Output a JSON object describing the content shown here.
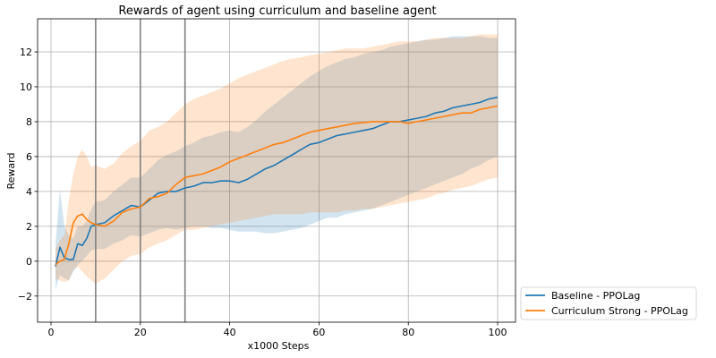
{
  "chart_data": {
    "type": "line",
    "title": "Rewards of agent using curriculum and baseline agent",
    "xlabel": "x1000 Steps",
    "ylabel": "Reward",
    "xlim": [
      -3,
      104
    ],
    "ylim": [
      -3.5,
      13.9
    ],
    "xticks": [
      0,
      20,
      40,
      60,
      80,
      100
    ],
    "yticks": [
      -2,
      0,
      2,
      4,
      6,
      8,
      10,
      12
    ],
    "grid": true,
    "vlines": [
      10,
      20,
      30
    ],
    "legend_position": "lower-right-outside",
    "series": [
      {
        "name": "Baseline - PPOLag",
        "color": "#1f77b4",
        "band_color": "#1f77b4",
        "points": [
          [
            1,
            -0.3
          ],
          [
            2,
            0.8
          ],
          [
            3,
            0.2
          ],
          [
            4,
            0.1
          ],
          [
            5,
            0.1
          ],
          [
            6,
            1.0
          ],
          [
            7,
            0.9
          ],
          [
            8,
            1.3
          ],
          [
            9,
            2.0
          ],
          [
            10,
            2.1
          ],
          [
            12,
            2.2
          ],
          [
            14,
            2.6
          ],
          [
            16,
            2.9
          ],
          [
            18,
            3.2
          ],
          [
            20,
            3.1
          ],
          [
            22,
            3.5
          ],
          [
            24,
            3.9
          ],
          [
            26,
            4.0
          ],
          [
            28,
            4.0
          ],
          [
            30,
            4.2
          ],
          [
            32,
            4.3
          ],
          [
            34,
            4.5
          ],
          [
            36,
            4.5
          ],
          [
            38,
            4.6
          ],
          [
            40,
            4.6
          ],
          [
            42,
            4.5
          ],
          [
            44,
            4.7
          ],
          [
            46,
            5.0
          ],
          [
            48,
            5.3
          ],
          [
            50,
            5.5
          ],
          [
            52,
            5.8
          ],
          [
            54,
            6.1
          ],
          [
            56,
            6.4
          ],
          [
            58,
            6.7
          ],
          [
            60,
            6.8
          ],
          [
            62,
            7.0
          ],
          [
            64,
            7.2
          ],
          [
            66,
            7.3
          ],
          [
            68,
            7.4
          ],
          [
            70,
            7.5
          ],
          [
            72,
            7.6
          ],
          [
            74,
            7.8
          ],
          [
            76,
            8.0
          ],
          [
            78,
            8.0
          ],
          [
            80,
            8.1
          ],
          [
            82,
            8.2
          ],
          [
            84,
            8.3
          ],
          [
            86,
            8.5
          ],
          [
            88,
            8.6
          ],
          [
            90,
            8.8
          ],
          [
            92,
            8.9
          ],
          [
            94,
            9.0
          ],
          [
            96,
            9.1
          ],
          [
            98,
            9.3
          ],
          [
            100,
            9.4
          ]
        ],
        "lower": [
          [
            1,
            -1.6
          ],
          [
            2,
            -0.8
          ],
          [
            3,
            -1.0
          ],
          [
            4,
            -1.1
          ],
          [
            5,
            -0.6
          ],
          [
            6,
            -0.2
          ],
          [
            7,
            0.0
          ],
          [
            8,
            0.3
          ],
          [
            9,
            0.6
          ],
          [
            10,
            0.7
          ],
          [
            12,
            0.7
          ],
          [
            14,
            1.0
          ],
          [
            16,
            1.2
          ],
          [
            18,
            1.5
          ],
          [
            20,
            1.4
          ],
          [
            22,
            1.6
          ],
          [
            24,
            1.8
          ],
          [
            26,
            1.9
          ],
          [
            28,
            1.8
          ],
          [
            30,
            1.9
          ],
          [
            32,
            2.0
          ],
          [
            34,
            2.0
          ],
          [
            36,
            1.9
          ],
          [
            38,
            1.9
          ],
          [
            40,
            1.8
          ],
          [
            42,
            1.7
          ],
          [
            44,
            1.7
          ],
          [
            46,
            1.7
          ],
          [
            48,
            1.6
          ],
          [
            50,
            1.6
          ],
          [
            52,
            1.7
          ],
          [
            54,
            1.8
          ],
          [
            56,
            1.9
          ],
          [
            58,
            2.1
          ],
          [
            60,
            2.3
          ],
          [
            62,
            2.5
          ],
          [
            64,
            2.5
          ],
          [
            66,
            2.7
          ],
          [
            68,
            2.8
          ],
          [
            70,
            2.9
          ],
          [
            72,
            3.0
          ],
          [
            74,
            3.2
          ],
          [
            76,
            3.4
          ],
          [
            78,
            3.6
          ],
          [
            80,
            3.8
          ],
          [
            82,
            4.0
          ],
          [
            84,
            4.2
          ],
          [
            86,
            4.4
          ],
          [
            88,
            4.6
          ],
          [
            90,
            4.8
          ],
          [
            92,
            5.0
          ],
          [
            94,
            5.3
          ],
          [
            96,
            5.5
          ],
          [
            98,
            5.8
          ],
          [
            100,
            6.0
          ]
        ],
        "upper": [
          [
            1,
            1.0
          ],
          [
            2,
            4.1
          ],
          [
            3,
            2.0
          ],
          [
            4,
            1.5
          ],
          [
            5,
            1.3
          ],
          [
            6,
            2.0
          ],
          [
            7,
            2.0
          ],
          [
            8,
            2.3
          ],
          [
            9,
            3.0
          ],
          [
            10,
            3.4
          ],
          [
            12,
            3.5
          ],
          [
            14,
            4.0
          ],
          [
            16,
            4.4
          ],
          [
            18,
            4.8
          ],
          [
            20,
            4.8
          ],
          [
            22,
            5.3
          ],
          [
            24,
            5.8
          ],
          [
            26,
            6.1
          ],
          [
            28,
            6.3
          ],
          [
            30,
            6.6
          ],
          [
            32,
            6.8
          ],
          [
            34,
            7.1
          ],
          [
            36,
            7.2
          ],
          [
            38,
            7.4
          ],
          [
            40,
            7.5
          ],
          [
            42,
            7.4
          ],
          [
            44,
            7.7
          ],
          [
            46,
            8.1
          ],
          [
            48,
            8.6
          ],
          [
            50,
            9.0
          ],
          [
            52,
            9.4
          ],
          [
            54,
            9.8
          ],
          [
            56,
            10.2
          ],
          [
            58,
            10.6
          ],
          [
            60,
            10.9
          ],
          [
            62,
            11.2
          ],
          [
            64,
            11.4
          ],
          [
            66,
            11.6
          ],
          [
            68,
            11.7
          ],
          [
            70,
            11.9
          ],
          [
            72,
            12.0
          ],
          [
            74,
            12.1
          ],
          [
            76,
            12.3
          ],
          [
            78,
            12.4
          ],
          [
            80,
            12.5
          ],
          [
            82,
            12.6
          ],
          [
            84,
            12.7
          ],
          [
            86,
            12.7
          ],
          [
            88,
            12.8
          ],
          [
            90,
            12.9
          ],
          [
            92,
            12.9
          ],
          [
            94,
            12.9
          ],
          [
            96,
            12.9
          ],
          [
            98,
            12.8
          ],
          [
            100,
            12.8
          ]
        ]
      },
      {
        "name": "Curriculum Strong - PPOLag",
        "color": "#ff7f0e",
        "band_color": "#ff7f0e",
        "points": [
          [
            1,
            -0.2
          ],
          [
            2,
            0.0
          ],
          [
            3,
            0.1
          ],
          [
            4,
            1.0
          ],
          [
            5,
            2.2
          ],
          [
            6,
            2.6
          ],
          [
            7,
            2.7
          ],
          [
            8,
            2.4
          ],
          [
            9,
            2.2
          ],
          [
            10,
            2.1
          ],
          [
            12,
            2.0
          ],
          [
            14,
            2.3
          ],
          [
            16,
            2.8
          ],
          [
            18,
            3.0
          ],
          [
            20,
            3.1
          ],
          [
            22,
            3.6
          ],
          [
            24,
            3.7
          ],
          [
            26,
            3.9
          ],
          [
            28,
            4.4
          ],
          [
            30,
            4.8
          ],
          [
            32,
            4.9
          ],
          [
            34,
            5.0
          ],
          [
            36,
            5.2
          ],
          [
            38,
            5.4
          ],
          [
            40,
            5.7
          ],
          [
            42,
            5.9
          ],
          [
            44,
            6.1
          ],
          [
            46,
            6.3
          ],
          [
            48,
            6.5
          ],
          [
            50,
            6.7
          ],
          [
            52,
            6.8
          ],
          [
            54,
            7.0
          ],
          [
            56,
            7.2
          ],
          [
            58,
            7.4
          ],
          [
            60,
            7.5
          ],
          [
            62,
            7.6
          ],
          [
            64,
            7.7
          ],
          [
            66,
            7.8
          ],
          [
            68,
            7.9
          ],
          [
            70,
            7.95
          ],
          [
            72,
            8.0
          ],
          [
            74,
            8.0
          ],
          [
            76,
            8.0
          ],
          [
            78,
            8.0
          ],
          [
            80,
            7.9
          ],
          [
            82,
            8.0
          ],
          [
            84,
            8.1
          ],
          [
            86,
            8.2
          ],
          [
            88,
            8.3
          ],
          [
            90,
            8.4
          ],
          [
            92,
            8.5
          ],
          [
            94,
            8.5
          ],
          [
            96,
            8.7
          ],
          [
            98,
            8.8
          ],
          [
            100,
            8.9
          ]
        ],
        "lower": [
          [
            1,
            -1.0
          ],
          [
            2,
            -1.1
          ],
          [
            3,
            -1.2
          ],
          [
            4,
            -1.1
          ],
          [
            5,
            -0.5
          ],
          [
            6,
            -0.3
          ],
          [
            7,
            -0.6
          ],
          [
            8,
            -0.9
          ],
          [
            9,
            -1.1
          ],
          [
            10,
            -1.3
          ],
          [
            12,
            -1.0
          ],
          [
            14,
            -0.5
          ],
          [
            16,
            0.0
          ],
          [
            18,
            0.3
          ],
          [
            20,
            0.4
          ],
          [
            22,
            0.8
          ],
          [
            24,
            1.0
          ],
          [
            26,
            1.2
          ],
          [
            28,
            1.5
          ],
          [
            30,
            1.8
          ],
          [
            32,
            1.8
          ],
          [
            34,
            1.9
          ],
          [
            36,
            2.0
          ],
          [
            38,
            2.1
          ],
          [
            40,
            2.2
          ],
          [
            42,
            2.3
          ],
          [
            44,
            2.4
          ],
          [
            46,
            2.5
          ],
          [
            48,
            2.6
          ],
          [
            50,
            2.7
          ],
          [
            52,
            2.7
          ],
          [
            54,
            2.7
          ],
          [
            56,
            2.7
          ],
          [
            58,
            2.8
          ],
          [
            60,
            2.8
          ],
          [
            62,
            2.8
          ],
          [
            64,
            2.8
          ],
          [
            66,
            2.9
          ],
          [
            68,
            2.9
          ],
          [
            70,
            3.0
          ],
          [
            72,
            3.0
          ],
          [
            74,
            3.1
          ],
          [
            76,
            3.2
          ],
          [
            78,
            3.3
          ],
          [
            80,
            3.4
          ],
          [
            82,
            3.5
          ],
          [
            84,
            3.6
          ],
          [
            86,
            3.8
          ],
          [
            88,
            3.9
          ],
          [
            90,
            4.1
          ],
          [
            92,
            4.2
          ],
          [
            94,
            4.3
          ],
          [
            96,
            4.5
          ],
          [
            98,
            4.7
          ],
          [
            100,
            4.8
          ]
        ],
        "upper": [
          [
            1,
            0.7
          ],
          [
            2,
            1.2
          ],
          [
            3,
            1.5
          ],
          [
            4,
            3.5
          ],
          [
            5,
            5.0
          ],
          [
            6,
            6.0
          ],
          [
            7,
            6.4
          ],
          [
            8,
            6.0
          ],
          [
            9,
            5.4
          ],
          [
            10,
            5.5
          ],
          [
            12,
            5.3
          ],
          [
            14,
            5.6
          ],
          [
            16,
            6.2
          ],
          [
            18,
            6.6
          ],
          [
            20,
            6.9
          ],
          [
            22,
            7.5
          ],
          [
            24,
            7.7
          ],
          [
            26,
            8.0
          ],
          [
            28,
            8.5
          ],
          [
            30,
            9.0
          ],
          [
            32,
            9.3
          ],
          [
            34,
            9.5
          ],
          [
            36,
            9.7
          ],
          [
            38,
            9.9
          ],
          [
            40,
            10.2
          ],
          [
            42,
            10.5
          ],
          [
            44,
            10.7
          ],
          [
            46,
            10.9
          ],
          [
            48,
            11.1
          ],
          [
            50,
            11.3
          ],
          [
            52,
            11.5
          ],
          [
            54,
            11.6
          ],
          [
            56,
            11.7
          ],
          [
            58,
            11.8
          ],
          [
            60,
            11.9
          ],
          [
            62,
            12.0
          ],
          [
            64,
            12.1
          ],
          [
            66,
            12.2
          ],
          [
            68,
            12.2
          ],
          [
            70,
            12.2
          ],
          [
            72,
            12.3
          ],
          [
            74,
            12.4
          ],
          [
            76,
            12.5
          ],
          [
            78,
            12.6
          ],
          [
            80,
            12.6
          ],
          [
            82,
            12.6
          ],
          [
            84,
            12.7
          ],
          [
            86,
            12.8
          ],
          [
            88,
            12.8
          ],
          [
            90,
            12.8
          ],
          [
            92,
            12.8
          ],
          [
            94,
            12.9
          ],
          [
            96,
            13.0
          ],
          [
            98,
            13.0
          ],
          [
            100,
            13.0
          ]
        ]
      }
    ]
  }
}
